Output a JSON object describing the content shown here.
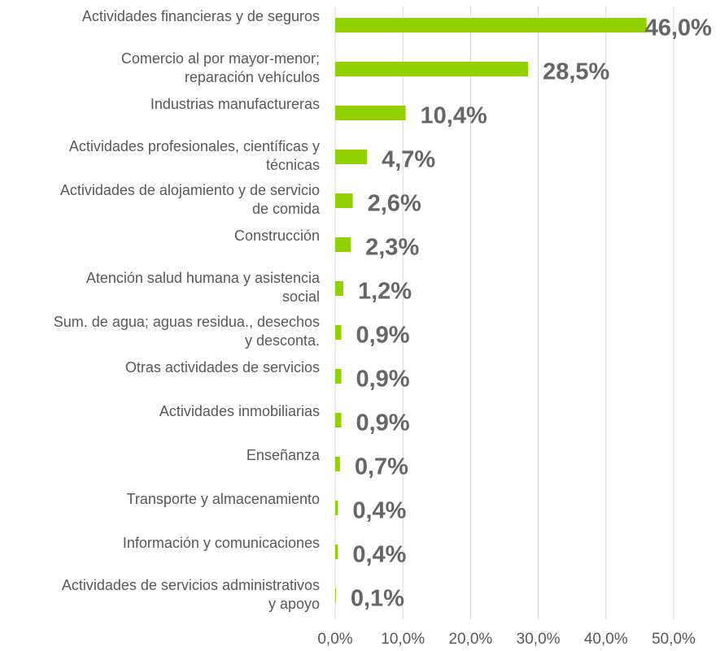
{
  "chart_data": {
    "type": "barh",
    "categories": [
      "Actividades financieras y de seguros",
      "Comercio al por mayor-menor;\nreparación vehículos",
      "Industrias manufactureras",
      "Actividades profesionales, científicas y\ntécnicas",
      "Actividades de alojamiento y de servicio\nde comida",
      "Construcción",
      "Atención salud humana y asistencia\nsocial",
      "Sum. de agua; aguas residua., desechos\ny desconta.",
      "Otras actividades de servicios",
      "Actividades inmobiliarias",
      "Enseñanza",
      "Transporte y almacenamiento",
      "Información y comunicaciones",
      "Actividades de servicios administrativos\ny apoyo"
    ],
    "values": [
      46.0,
      28.5,
      10.4,
      4.7,
      2.6,
      2.3,
      1.2,
      0.9,
      0.9,
      0.9,
      0.7,
      0.4,
      0.4,
      0.1
    ],
    "value_labels": [
      "46,0%",
      "28,5%",
      "10,4%",
      "4,7%",
      "2,6%",
      "2,3%",
      "1,2%",
      "0,9%",
      "0,9%",
      "0,9%",
      "0,7%",
      "0,4%",
      "0,4%",
      "0,1%"
    ],
    "color": "#92d000",
    "xlim": [
      0,
      50
    ],
    "xticks": [
      {
        "value": 0,
        "label": "0,0%"
      },
      {
        "value": 10,
        "label": "10,0%"
      },
      {
        "value": 20,
        "label": "20,0%"
      },
      {
        "value": 30,
        "label": "30,0%"
      },
      {
        "value": 40,
        "label": "40,0%"
      },
      {
        "value": 50,
        "label": "50,0%"
      }
    ],
    "grid": true
  }
}
